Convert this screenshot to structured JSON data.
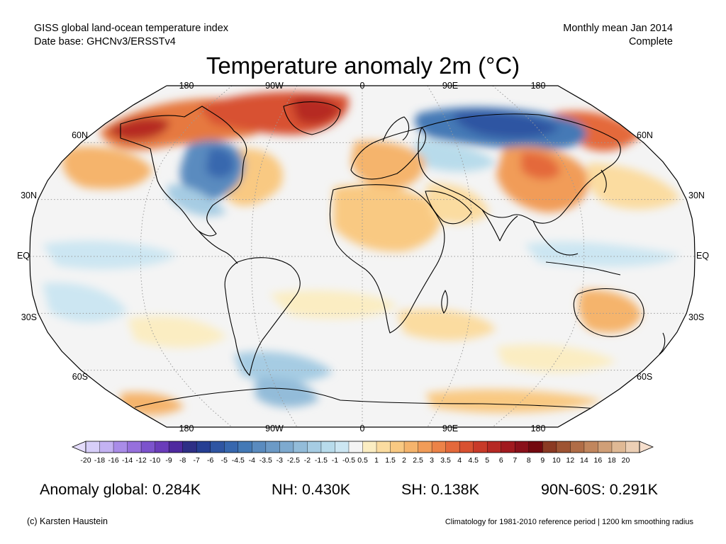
{
  "header": {
    "line1_left": "GISS global land-ocean temperature index",
    "line2_left": "Date base: GHCNv3/ERSSTv4",
    "line1_right": "Monthly mean Jan 2014",
    "line2_right": "Complete"
  },
  "title": "Temperature anomaly 2m (°C)",
  "map": {
    "projection": "Robinson",
    "lon_labels_top": [
      "180",
      "90W",
      "0",
      "90E",
      "180"
    ],
    "lon_labels_bottom": [
      "180",
      "90W",
      "0",
      "90E",
      "180"
    ],
    "lat_labels_left": [
      "60N",
      "30N",
      "EQ",
      "30S",
      "60S"
    ],
    "lat_labels_right": [
      "60N",
      "30N",
      "EQ",
      "30S",
      "60S"
    ],
    "ocean_color": "#f4f4f4",
    "coastline_color": "#000000"
  },
  "colorbar": {
    "labels": [
      "-20",
      "-18",
      "-16",
      "-14",
      "-12",
      "-10",
      "-9",
      "-8",
      "-7",
      "-6",
      "-5",
      "-4.5",
      "-4",
      "-3.5",
      "-3",
      "-2.5",
      "-2",
      "-1.5",
      "-1",
      "-0.5",
      "0.5",
      "1",
      "1.5",
      "2",
      "2.5",
      "3",
      "3.5",
      "4",
      "4.5",
      "5",
      "6",
      "7",
      "8",
      "9",
      "10",
      "12",
      "14",
      "16",
      "18",
      "20"
    ],
    "colors": [
      "#d7cef9",
      "#c3b2f2",
      "#a98ce8",
      "#9670dc",
      "#7c53cc",
      "#6a3cba",
      "#4f2a9f",
      "#2e2f86",
      "#263f93",
      "#2f55a2",
      "#3767ae",
      "#4479b6",
      "#5a8bbf",
      "#6c9ac6",
      "#7eaacf",
      "#93bcd9",
      "#a6cce3",
      "#b8dbeb",
      "#cce6f2",
      "#f4f4f4",
      "#fbedc2",
      "#fbdca0",
      "#f9c982",
      "#f5b46c",
      "#f19c58",
      "#ec8348",
      "#e4693b",
      "#d85131",
      "#c83a29",
      "#b62924",
      "#a11a1f",
      "#8a101a",
      "#73090f",
      "#8b3a23",
      "#9e5433",
      "#b06d47",
      "#c1865d",
      "#d09f77",
      "#dfb995",
      "#eccfb5"
    ]
  },
  "stats": {
    "global": "Anomaly global: 0.284K",
    "nh": "NH: 0.430K",
    "sh": "SH: 0.138K",
    "polar": "90N-60S: 0.291K"
  },
  "footer": {
    "credit": "(c) Karsten Haustein",
    "climatology": "Climatology for 1981-2010 reference period | 1200 km smoothing radius"
  }
}
